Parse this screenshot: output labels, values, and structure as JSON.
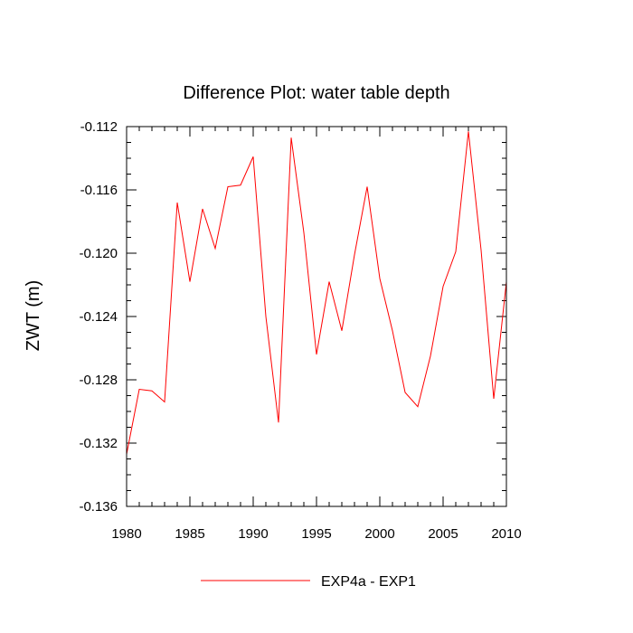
{
  "chart_data": {
    "type": "line",
    "title": "Difference Plot: water table depth",
    "xlabel": "",
    "ylabel": "ZWT  (m)",
    "xlim": [
      1980,
      2010
    ],
    "ylim": [
      -0.136,
      -0.112
    ],
    "x_ticks": [
      1980,
      1985,
      1990,
      1995,
      2000,
      2005,
      2010
    ],
    "y_ticks": [
      -0.112,
      -0.116,
      -0.12,
      -0.124,
      -0.128,
      -0.132,
      -0.136
    ],
    "y_tick_labels": [
      "-0.112",
      "-0.116",
      "-0.120",
      "-0.124",
      "-0.128",
      "-0.132",
      "-0.136"
    ],
    "x_tick_labels": [
      "1980",
      "1985",
      "1990",
      "1995",
      "2000",
      "2005",
      "2010"
    ],
    "legend_position": "bottom-center",
    "series": [
      {
        "name": "EXP4a - EXP1",
        "color": "#ff0000",
        "x": [
          1980,
          1981,
          1982,
          1983,
          1984,
          1985,
          1986,
          1987,
          1988,
          1989,
          1990,
          1991,
          1992,
          1993,
          1994,
          1995,
          1996,
          1997,
          1998,
          1999,
          2000,
          2001,
          2002,
          2003,
          2004,
          2005,
          2006,
          2007,
          2008,
          2009,
          2010
        ],
        "values": [
          -0.1327,
          -0.1286,
          -0.1287,
          -0.1294,
          -0.1168,
          -0.1218,
          -0.1172,
          -0.1197,
          -0.1158,
          -0.1157,
          -0.1139,
          -0.124,
          -0.1307,
          -0.1127,
          -0.1187,
          -0.1264,
          -0.1218,
          -0.1249,
          -0.1201,
          -0.1158,
          -0.1216,
          -0.1249,
          -0.1288,
          -0.1297,
          -0.1265,
          -0.1221,
          -0.1199,
          -0.1123,
          -0.1198,
          -0.1292,
          -0.1218
        ]
      }
    ]
  }
}
